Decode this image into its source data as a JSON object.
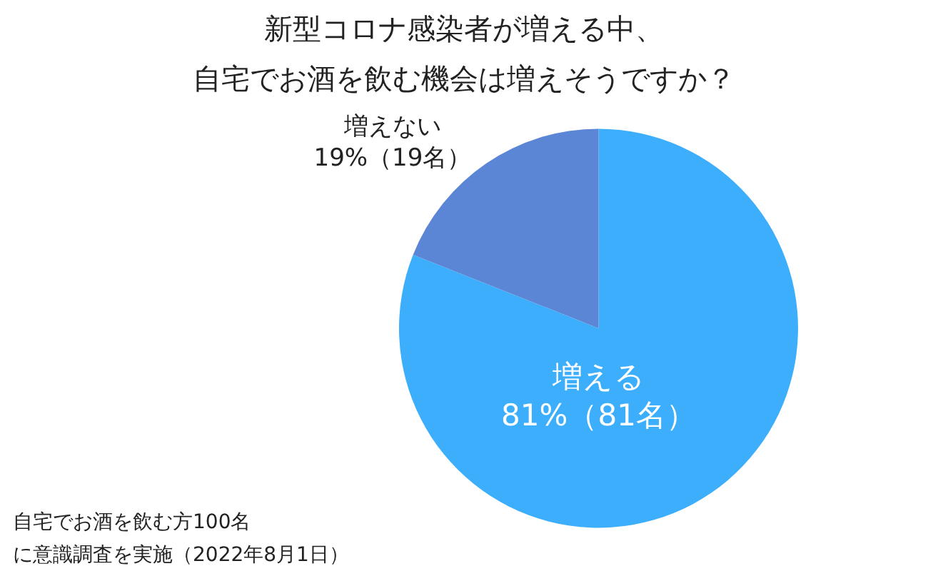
{
  "chart_data": {
    "type": "pie",
    "title": "新型コロナ感染者が増える中、",
    "subtitle": "自宅でお酒を飲む機会は増えそうですか？",
    "categories": [
      "増える",
      "増えない"
    ],
    "values": [
      81,
      19
    ],
    "value_labels": [
      "81%（81名）",
      "19%（19名）"
    ],
    "colors": [
      "#3daefc",
      "#5b86d6"
    ],
    "annotations": [
      "自宅でお酒を飲む方100名",
      "に意識調査を実施（2022年8月1日）"
    ]
  }
}
